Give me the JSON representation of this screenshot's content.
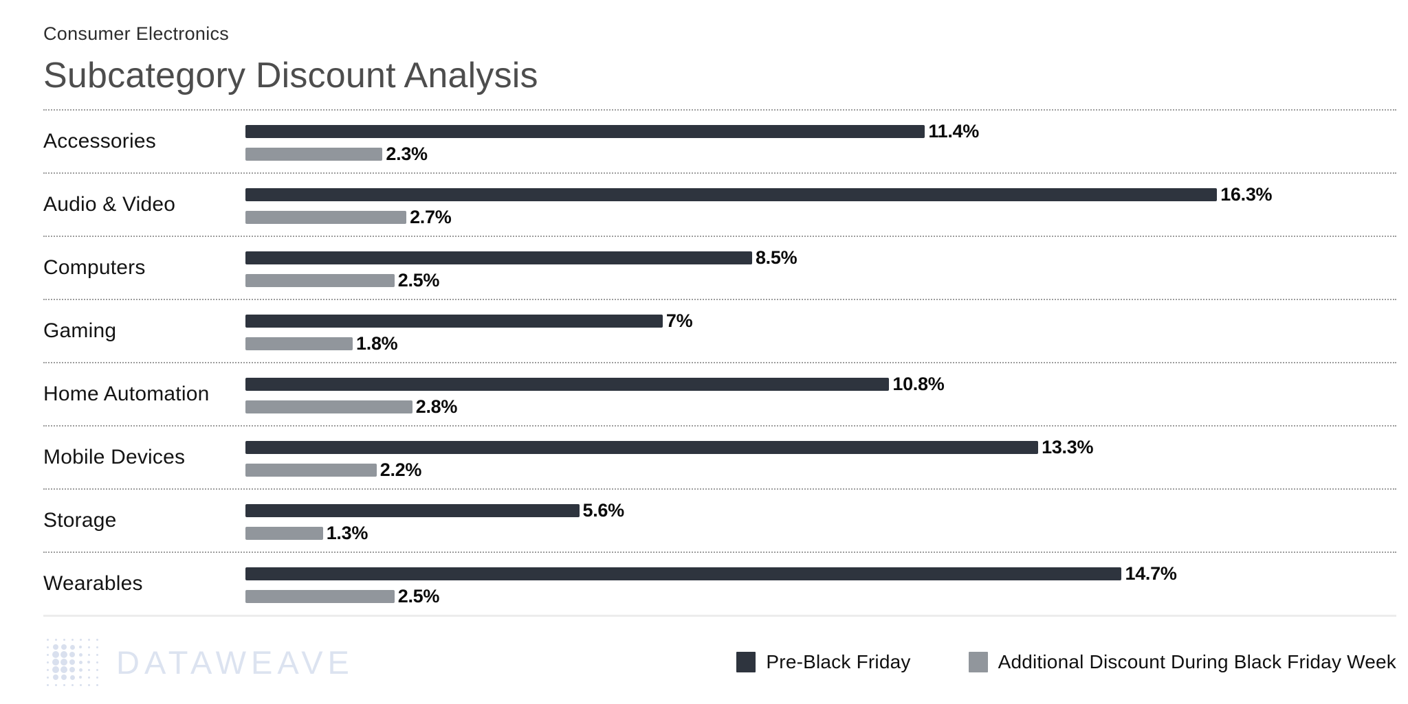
{
  "header": {
    "subtitle": "Consumer Electronics",
    "title": "Subcategory Discount Analysis"
  },
  "chart_data": {
    "type": "bar",
    "orientation": "horizontal",
    "title": "Subcategory Discount Analysis",
    "subtitle": "Consumer Electronics",
    "categories": [
      "Accessories",
      "Audio & Video",
      "Computers",
      "Gaming",
      "Home Automation",
      "Mobile Devices",
      "Storage",
      "Wearables"
    ],
    "series": [
      {
        "name": "Pre-Black Friday",
        "color": "#2e343e",
        "values": [
          11.4,
          16.3,
          8.5,
          7,
          10.8,
          13.3,
          5.6,
          14.7
        ],
        "value_labels": [
          "11.4%",
          "16.3%",
          "8.5%",
          "7%",
          "10.8%",
          "13.3%",
          "5.6%",
          "14.7%"
        ]
      },
      {
        "name": "Additional Discount During Black Friday Week",
        "color": "#91969c",
        "values": [
          2.3,
          2.7,
          2.5,
          1.8,
          2.8,
          2.2,
          1.3,
          2.5
        ],
        "value_labels": [
          "2.3%",
          "2.7%",
          "2.5%",
          "1.8%",
          "2.8%",
          "2.2%",
          "1.3%",
          "2.5%"
        ]
      }
    ],
    "value_suffix": "%",
    "xlim": [
      0,
      19.5
    ],
    "grid": "dotted row separators, no axis",
    "legend_position": "bottom-right"
  },
  "legend": {
    "items": [
      {
        "label": "Pre-Black Friday",
        "color": "#2e343e"
      },
      {
        "label": "Additional Discount During Black Friday Week",
        "color": "#91969c"
      }
    ]
  },
  "footer": {
    "logo_text": "DATAWEAVE"
  },
  "colors": {
    "dark_bar": "#2e343e",
    "gray_bar": "#91969c",
    "title_text": "#4d4d4d",
    "subtitle_text": "#2d2d2d",
    "value_text": "#0b0b0b",
    "separator_dotted": "#9c9c9c",
    "bottom_divider": "#ececec",
    "logo": "#dce3f0",
    "background": "#ffffff"
  }
}
